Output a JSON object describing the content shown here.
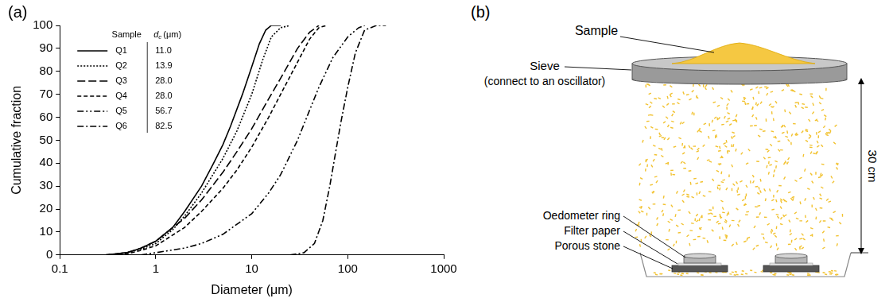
{
  "chart_data": {
    "type": "line",
    "panel_label": "(a)",
    "x_label": "Diameter (μm)",
    "y_label": "Cumulative fraction",
    "log": "x",
    "xlim": [
      0.1,
      1000
    ],
    "xticks": [
      0.1,
      1,
      10,
      100,
      1000
    ],
    "ylim": [
      0,
      100
    ],
    "yticks": [
      0,
      10,
      20,
      30,
      40,
      50,
      60,
      70,
      80,
      90,
      100
    ],
    "grid": false,
    "legend": "top-left",
    "legend_header": {
      "sample": "Sample",
      "d_symbol": "d",
      "d_subscript": "c",
      "d_unit": "(μm)"
    },
    "series": [
      {
        "name": "Q1",
        "color": "#000000",
        "line_style": "solid",
        "d_c": {
          "value": 11,
          "label": "11.0"
        },
        "x": [
          0.3,
          0.5,
          0.7,
          1,
          1.5,
          2,
          3,
          4,
          5,
          6,
          8,
          10,
          12,
          14,
          16,
          20
        ],
        "values": [
          0,
          1,
          3,
          6,
          12,
          19,
          30,
          40,
          48,
          56,
          70,
          82,
          92,
          98,
          100,
          100
        ]
      },
      {
        "name": "Q2",
        "color": "#000000",
        "line_style": "dotted",
        "d_c": 13.9,
        "x": [
          0.3,
          0.5,
          0.7,
          1,
          1.5,
          2,
          3,
          5,
          7,
          10,
          13,
          16,
          20,
          25
        ],
        "values": [
          0,
          1,
          2.5,
          5,
          11,
          17,
          27,
          42,
          54,
          70,
          85,
          95,
          99,
          100
        ]
      },
      {
        "name": "Q3",
        "color": "#000000",
        "line_style": "long_dash",
        "d_c": {
          "value": 28,
          "label": "28.0"
        },
        "x": [
          0.3,
          0.5,
          0.7,
          1,
          2,
          3,
          5,
          7,
          10,
          15,
          20,
          30,
          40,
          50
        ],
        "values": [
          0,
          1,
          3,
          6,
          16,
          24,
          36,
          45,
          55,
          68,
          77,
          90,
          97,
          100
        ]
      },
      {
        "name": "Q4",
        "color": "#000000",
        "line_style": "dashed",
        "d_c": {
          "value": 28,
          "label": "28.0"
        },
        "x": [
          0.3,
          0.5,
          0.7,
          1,
          2,
          3,
          5,
          7,
          10,
          15,
          20,
          30,
          40,
          50,
          60
        ],
        "values": [
          0,
          0.5,
          2,
          4,
          12,
          19,
          29,
          37,
          47,
          60,
          70,
          84,
          94,
          99,
          100
        ]
      },
      {
        "name": "Q5",
        "color": "#000000",
        "line_style": "dash_dot_dot",
        "d_c": 56.7,
        "x": [
          0.7,
          1,
          2,
          3,
          5,
          10,
          15,
          20,
          30,
          40,
          50,
          70,
          100,
          130,
          150
        ],
        "values": [
          0,
          1,
          3,
          5,
          9,
          18,
          27,
          35,
          50,
          63,
          73,
          86,
          95,
          99,
          100
        ]
      },
      {
        "name": "Q6",
        "color": "#000000",
        "line_style": "dash_dot",
        "d_c": 82.5,
        "x": [
          25,
          35,
          45,
          55,
          65,
          75,
          85,
          100,
          120,
          150,
          200,
          250
        ],
        "values": [
          0,
          1,
          5,
          15,
          30,
          45,
          58,
          73,
          88,
          98,
          100,
          100
        ]
      }
    ]
  },
  "diagram": {
    "panel_label": "(b)",
    "labels": {
      "sample": "Sample",
      "sieve": [
        "Sieve",
        "(connect to an oscillator)"
      ],
      "ring": "Oedometer ring",
      "filter": "Filter paper",
      "stone": "Porous stone",
      "height": "30 cm"
    }
  }
}
